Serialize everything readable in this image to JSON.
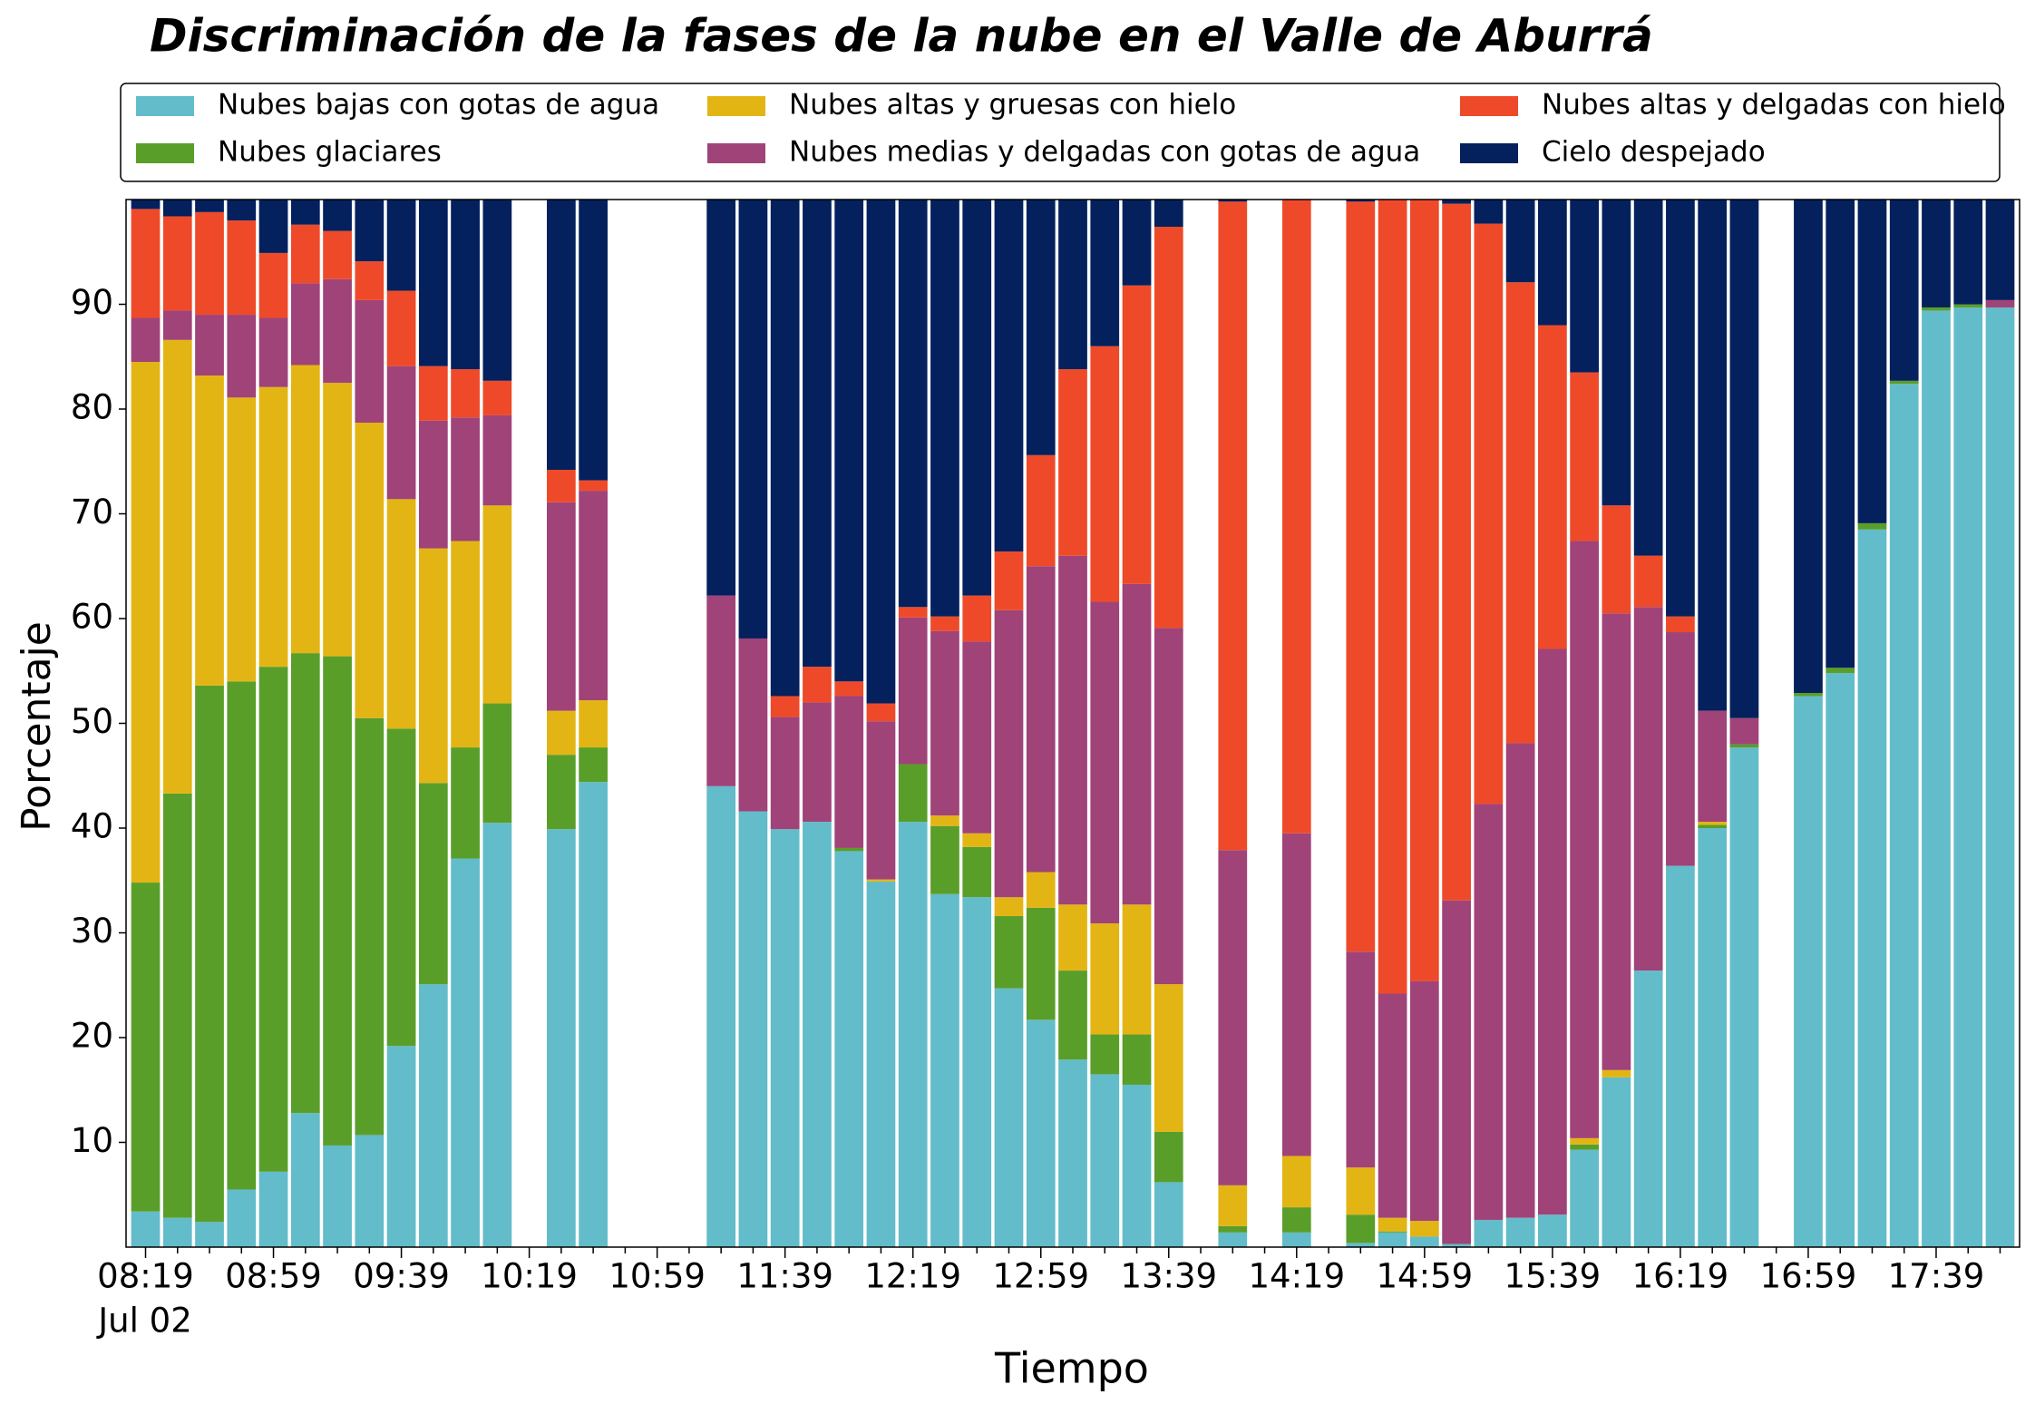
{
  "chart_data": {
    "type": "stacked_bar",
    "title": "Discriminación de la fases de la nube en el Valle de Aburrá",
    "x_label": "Tiempo",
    "y_label": "Porcentaje",
    "x_date_label": "Jul 02",
    "categories": [
      "08:19",
      null,
      null,
      null,
      "08:59",
      null,
      null,
      null,
      "09:39",
      null,
      null,
      null,
      "10:19",
      null,
      null,
      null,
      "10:59",
      null,
      null,
      null,
      "11:39",
      null,
      null,
      null,
      "12:19",
      null,
      null,
      null,
      "12:59",
      null,
      null,
      null,
      "13:39",
      null,
      null,
      null,
      "14:19",
      null,
      null,
      null,
      "14:59",
      null,
      null,
      null,
      "15:39",
      null,
      null,
      null,
      "16:19",
      null,
      null,
      null,
      "16:59",
      null,
      null,
      null,
      "17:39",
      null,
      null
    ],
    "ylim": [
      0,
      100
    ],
    "yticks": [
      10,
      20,
      30,
      40,
      50,
      60,
      70,
      80,
      90
    ],
    "legend": "top",
    "series": [
      {
        "name": "Nubes bajas con gotas de agua",
        "color": "#63bcc9",
        "values": [
          3.4,
          2.8,
          2.4,
          5.5,
          7.2,
          12.8,
          9.7,
          10.7,
          19.2,
          25.1,
          37.1,
          40.5,
          null,
          39.9,
          44.4,
          null,
          null,
          null,
          44.0,
          41.6,
          39.9,
          40.6,
          37.8,
          34.9,
          40.6,
          33.7,
          33.4,
          24.7,
          21.7,
          17.9,
          16.5,
          15.5,
          6.2,
          null,
          1.4,
          null,
          1.4,
          null,
          0.4,
          1.4,
          1.0,
          0.3,
          2.6,
          2.8,
          3.1,
          9.3,
          16.2,
          26.4,
          36.4,
          40.0,
          47.7,
          null,
          52.6,
          54.8,
          68.5,
          82.4,
          89.4,
          89.7,
          89.7
        ]
      },
      {
        "name": "Nubes glaciares",
        "color": "#5a9e2a",
        "values": [
          31.4,
          40.5,
          51.2,
          48.5,
          48.2,
          43.9,
          46.7,
          39.8,
          30.3,
          19.2,
          10.6,
          11.4,
          null,
          7.1,
          3.3,
          null,
          null,
          null,
          0,
          0,
          0,
          0,
          0.3,
          0,
          5.5,
          6.5,
          4.8,
          6.9,
          10.7,
          8.5,
          3.8,
          4.8,
          4.8,
          null,
          0.6,
          null,
          2.4,
          null,
          2.7,
          0.1,
          0,
          0,
          0,
          0,
          0,
          0.5,
          0,
          0,
          0,
          0.3,
          0.3,
          null,
          0.3,
          0.5,
          0.6,
          0.3,
          0.3,
          0.3,
          0
        ]
      },
      {
        "name": "Nubes altas y gruesas con hielo",
        "color": "#e3b514",
        "values": [
          49.7,
          43.3,
          29.6,
          27.1,
          26.7,
          27.5,
          26.1,
          28.2,
          21.9,
          22.4,
          19.7,
          18.9,
          null,
          4.2,
          4.5,
          null,
          null,
          null,
          0,
          0,
          0,
          0,
          0,
          0.2,
          0,
          1.0,
          1.3,
          1.8,
          3.4,
          6.3,
          10.6,
          12.4,
          14.1,
          null,
          3.9,
          null,
          4.9,
          null,
          4.5,
          1.3,
          1.5,
          0,
          0,
          0,
          0,
          0.6,
          0.7,
          0,
          0,
          0.3,
          0,
          null,
          0,
          0,
          0,
          0,
          0,
          0,
          0
        ]
      },
      {
        "name": "Nubes medias y delgadas con gotas de agua",
        "color": "#a04378",
        "values": [
          4.2,
          2.8,
          5.8,
          7.9,
          6.6,
          7.8,
          9.9,
          11.7,
          12.7,
          12.2,
          11.8,
          8.6,
          null,
          19.9,
          20.0,
          null,
          null,
          null,
          18.2,
          16.5,
          10.7,
          11.4,
          14.5,
          15.1,
          14.0,
          17.6,
          18.3,
          27.4,
          29.2,
          33.3,
          30.7,
          30.6,
          34.0,
          null,
          32.0,
          null,
          30.8,
          null,
          20.6,
          21.4,
          22.9,
          32.8,
          39.7,
          45.3,
          54.0,
          57.0,
          43.6,
          34.7,
          22.3,
          10.6,
          2.5,
          null,
          0,
          0,
          0,
          0,
          0,
          0,
          0.7
        ]
      },
      {
        "name": "Nubes altas y delgadas con hielo",
        "color": "#ee4a2a",
        "values": [
          10.4,
          9.0,
          9.8,
          9.0,
          6.2,
          5.6,
          4.6,
          3.7,
          7.2,
          5.2,
          4.6,
          3.3,
          null,
          3.1,
          1.0,
          null,
          null,
          null,
          0,
          0,
          2.0,
          3.4,
          1.4,
          1.7,
          1.0,
          1.4,
          4.4,
          5.6,
          10.6,
          17.8,
          24.4,
          28.5,
          38.3,
          null,
          61.9,
          null,
          60.5,
          null,
          71.6,
          75.8,
          74.6,
          66.5,
          55.4,
          44.0,
          30.9,
          16.1,
          10.3,
          4.9,
          1.5,
          0,
          0,
          null,
          0,
          0,
          0,
          0,
          0,
          0,
          0
        ]
      },
      {
        "name": "Cielo despejado",
        "color": "#04205d",
        "values": [
          0.9,
          1.6,
          1.2,
          2.0,
          5.1,
          2.4,
          3.0,
          5.9,
          8.7,
          15.9,
          16.2,
          17.3,
          null,
          25.8,
          26.8,
          null,
          null,
          null,
          37.8,
          41.9,
          47.4,
          44.6,
          46.0,
          48.1,
          38.9,
          39.8,
          37.8,
          33.6,
          24.4,
          16.2,
          14.0,
          8.2,
          2.6,
          null,
          0.2,
          null,
          0,
          null,
          0.2,
          0,
          0,
          0.4,
          2.3,
          7.9,
          12.0,
          16.5,
          29.2,
          34.0,
          39.8,
          48.8,
          49.5,
          null,
          47.1,
          44.7,
          30.9,
          17.3,
          10.3,
          10.0,
          9.6
        ]
      }
    ]
  }
}
